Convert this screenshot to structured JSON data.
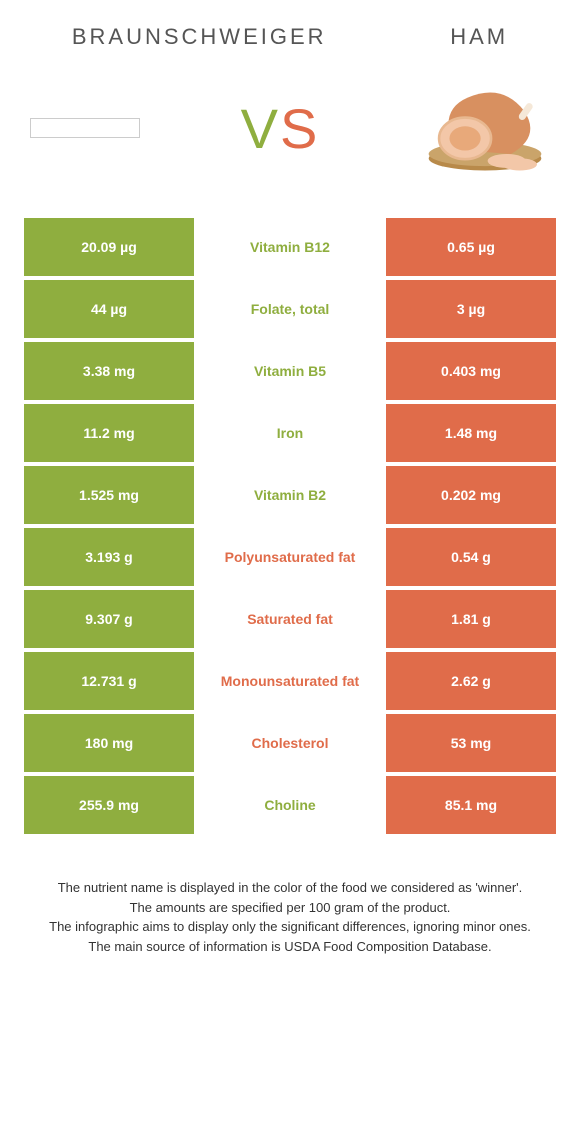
{
  "header": {
    "left_title": "Braunschweiger",
    "right_title": "Ham"
  },
  "vs": {
    "v": "V",
    "s": "S"
  },
  "colors": {
    "left": "#8fae3f",
    "right": "#e06c4a",
    "ham_board": "#b88a4a",
    "ham_meat": "#e8a97a",
    "ham_rind": "#d89060",
    "ham_slice": "#f3c7a8"
  },
  "rows": [
    {
      "left": "20.09 µg",
      "label": "Vitamin B12",
      "right": "0.65 µg",
      "winner": "left"
    },
    {
      "left": "44 µg",
      "label": "Folate, total",
      "right": "3 µg",
      "winner": "left"
    },
    {
      "left": "3.38 mg",
      "label": "Vitamin B5",
      "right": "0.403 mg",
      "winner": "left"
    },
    {
      "left": "11.2 mg",
      "label": "Iron",
      "right": "1.48 mg",
      "winner": "left"
    },
    {
      "left": "1.525 mg",
      "label": "Vitamin B2",
      "right": "0.202 mg",
      "winner": "left"
    },
    {
      "left": "3.193 g",
      "label": "Polyunsaturated fat",
      "right": "0.54 g",
      "winner": "right"
    },
    {
      "left": "9.307 g",
      "label": "Saturated fat",
      "right": "1.81 g",
      "winner": "right"
    },
    {
      "left": "12.731 g",
      "label": "Monounsaturated fat",
      "right": "2.62 g",
      "winner": "right"
    },
    {
      "left": "180 mg",
      "label": "Cholesterol",
      "right": "53 mg",
      "winner": "right"
    },
    {
      "left": "255.9 mg",
      "label": "Choline",
      "right": "85.1 mg",
      "winner": "left"
    }
  ],
  "footer": {
    "line1": "The nutrient name is displayed in the color of the food we considered as 'winner'.",
    "line2": "The amounts are specified per 100 gram of the product.",
    "line3": "The infographic aims to display only the significant differences, ignoring minor ones.",
    "line4": "The main source of information is USDA Food Composition Database."
  }
}
